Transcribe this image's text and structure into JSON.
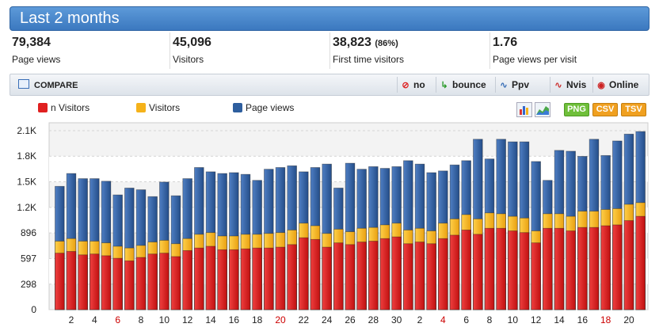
{
  "header": {
    "title": "Last 2 months"
  },
  "stats": [
    {
      "value": "79,384",
      "extra": "",
      "label": "Page views"
    },
    {
      "value": "45,096",
      "extra": "",
      "label": "Visitors"
    },
    {
      "value": "38,823",
      "extra": "(86%)",
      "label": "First time visitors"
    },
    {
      "value": "1.76",
      "extra": "",
      "label": "Page views per visit"
    }
  ],
  "toolbar": {
    "compare_label": "COMPARE",
    "buttons": [
      {
        "label": "no",
        "icon": "no-icon"
      },
      {
        "label": "bounce",
        "icon": "bounce-icon"
      },
      {
        "label": "Ppv",
        "icon": "ppv-chart-icon"
      },
      {
        "label": "Nvis",
        "icon": "nvis-chart-icon"
      },
      {
        "label": "Online",
        "icon": "online-broadcast-icon"
      }
    ]
  },
  "legend": [
    {
      "label": "n Visitors",
      "color": "#e02020"
    },
    {
      "label": "Visitors",
      "color": "#f5b21a"
    },
    {
      "label": "Page views",
      "color": "#2e5e9e"
    }
  ],
  "export": {
    "png": "PNG",
    "csv": "CSV",
    "tsv": "TSV"
  },
  "colors": {
    "accent": "#3b78bf",
    "red": "#e02020",
    "yellow": "#f5b21a",
    "blue": "#2e5e9e",
    "png_green": "#6fbf3a",
    "csv_orange": "#f0a020"
  },
  "chart_data": {
    "type": "bar",
    "stacked": false,
    "y_ticks": [
      "0",
      "298",
      "597",
      "896",
      "1.2K",
      "1.5K",
      "1.8K",
      "2.1K"
    ],
    "y_tick_values": [
      0,
      298,
      597,
      896,
      1194,
      1493,
      1792,
      2090
    ],
    "ylim": [
      0,
      2090
    ],
    "x_tick_labels": [
      "2",
      "4",
      "6",
      "8",
      "10",
      "12",
      "14",
      "16",
      "18",
      "20",
      "22",
      "24",
      "26",
      "28",
      "30",
      "2",
      "4",
      "6",
      "8",
      "10",
      "12",
      "14",
      "16",
      "18",
      "20"
    ],
    "x_tick_label_colors": [
      "#222",
      "#222",
      "#c00",
      "#222",
      "#222",
      "#222",
      "#222",
      "#222",
      "#222",
      "#c00",
      "#222",
      "#222",
      "#222",
      "#222",
      "#222",
      "#222",
      "#c00",
      "#222",
      "#222",
      "#222",
      "#222",
      "#222",
      "#222",
      "#c00",
      "#222"
    ],
    "categories": [
      "1",
      "2",
      "3",
      "4",
      "5",
      "6",
      "7",
      "8",
      "9",
      "10",
      "11",
      "12",
      "13",
      "14",
      "15",
      "16",
      "17",
      "18",
      "19",
      "20",
      "21",
      "22",
      "23",
      "24",
      "25",
      "26",
      "27",
      "28",
      "29",
      "30",
      "31",
      "1",
      "2",
      "3",
      "4",
      "5",
      "6",
      "7",
      "8",
      "9",
      "10",
      "11",
      "12",
      "13",
      "14",
      "15",
      "16",
      "17",
      "18",
      "19",
      "20"
    ],
    "series": [
      {
        "name": "Page views",
        "values": [
          1440,
          1590,
          1530,
          1530,
          1500,
          1340,
          1420,
          1400,
          1320,
          1490,
          1330,
          1530,
          1660,
          1610,
          1590,
          1600,
          1580,
          1510,
          1640,
          1660,
          1680,
          1610,
          1660,
          1700,
          1420,
          1710,
          1640,
          1670,
          1650,
          1670,
          1740,
          1700,
          1600,
          1620,
          1690,
          1740,
          1990,
          1760,
          1990,
          1960,
          1960,
          1730,
          1510,
          1860,
          1850,
          1790,
          1990,
          1800,
          1970,
          2050,
          2080
        ]
      },
      {
        "name": "Visitors",
        "values": [
          800,
          830,
          800,
          800,
          780,
          740,
          720,
          750,
          790,
          810,
          770,
          830,
          880,
          900,
          860,
          860,
          880,
          880,
          890,
          900,
          930,
          1010,
          980,
          890,
          940,
          910,
          950,
          960,
          990,
          1010,
          930,
          950,
          920,
          1010,
          1060,
          1110,
          1060,
          1130,
          1120,
          1090,
          1070,
          920,
          1120,
          1120,
          1090,
          1150,
          1150,
          1170,
          1180,
          1230,
          1250
        ]
      },
      {
        "name": "n Visitors",
        "values": [
          660,
          680,
          640,
          650,
          630,
          600,
          570,
          610,
          650,
          660,
          620,
          690,
          720,
          740,
          700,
          700,
          710,
          720,
          720,
          730,
          760,
          840,
          820,
          730,
          780,
          760,
          790,
          800,
          830,
          850,
          770,
          790,
          770,
          830,
          870,
          930,
          880,
          950,
          950,
          920,
          900,
          780,
          950,
          950,
          920,
          960,
          960,
          980,
          990,
          1040,
          1090
        ]
      }
    ]
  }
}
